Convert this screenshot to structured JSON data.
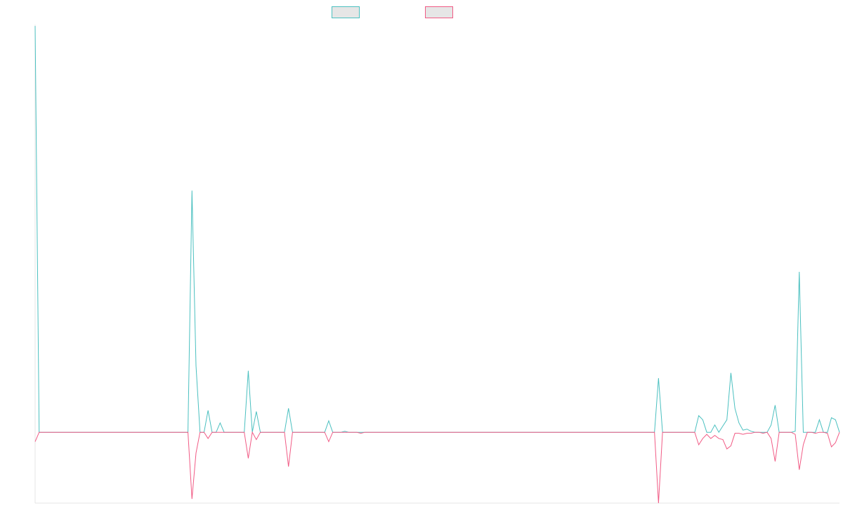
{
  "chart_data": {
    "type": "line",
    "title": "",
    "xlabel": "",
    "ylabel": "",
    "ylim": [
      -3.4,
      19.5
    ],
    "grid": false,
    "legend": {
      "placement": "top-center"
    },
    "x": [
      0,
      1,
      2,
      3,
      4,
      5,
      6,
      7,
      8,
      9,
      10,
      11,
      12,
      13,
      14,
      15,
      16,
      17,
      18,
      19,
      20,
      21,
      22,
      23,
      24,
      25,
      26,
      27,
      28,
      29,
      30,
      31,
      32,
      33,
      34,
      35,
      36,
      37,
      38,
      39,
      40,
      41,
      42,
      43,
      44,
      45,
      46,
      47,
      48,
      49,
      50,
      51,
      52,
      53,
      54,
      55,
      56,
      57,
      58,
      59,
      60,
      61,
      62,
      63,
      64,
      65,
      66,
      67,
      68,
      69,
      70,
      71,
      72,
      73,
      74,
      75,
      76,
      77,
      78,
      79,
      80,
      81,
      82,
      83,
      84,
      85,
      86,
      87,
      88,
      89,
      90,
      91,
      92,
      93,
      94,
      95,
      96,
      97,
      98,
      99,
      100,
      101,
      102,
      103,
      104,
      105,
      106,
      107,
      108,
      109,
      110,
      111,
      112,
      113,
      114,
      115,
      116,
      117,
      118,
      119,
      120,
      121,
      122,
      123,
      124,
      125,
      126,
      127,
      128,
      129,
      130,
      131,
      132,
      133,
      134,
      135,
      136,
      137,
      138,
      139,
      140,
      141,
      142,
      143,
      144,
      145,
      146,
      147,
      148,
      149,
      150,
      151,
      152,
      153,
      154,
      155,
      156,
      157,
      158,
      159,
      160,
      161,
      162,
      163,
      164,
      165,
      166,
      167,
      168,
      169,
      170,
      171,
      172,
      173,
      174,
      175,
      176,
      177,
      178,
      179,
      180,
      181,
      182,
      183,
      184,
      185,
      186,
      187,
      188,
      189,
      190,
      191,
      192,
      193,
      194,
      195,
      196,
      197,
      198,
      199,
      200
    ],
    "series": [
      {
        "name": "",
        "color": "#4bc0c0",
        "values": [
          19.5,
          0,
          0,
          0,
          0,
          0,
          0,
          0,
          0,
          0,
          0,
          0,
          0,
          0,
          0,
          0,
          0,
          0,
          0,
          0,
          0,
          0,
          0,
          0,
          0,
          0,
          0,
          0,
          0,
          0,
          0,
          0,
          0,
          0,
          0,
          0,
          0,
          0,
          0,
          11.6,
          3.2,
          0,
          0,
          1.05,
          0,
          0,
          0.45,
          0,
          0,
          0,
          0,
          0,
          0,
          2.95,
          0,
          1.0,
          0,
          0,
          0,
          0,
          0,
          0,
          0,
          1.15,
          0,
          0,
          0,
          0,
          0,
          0,
          0,
          0,
          0,
          0.55,
          0,
          0,
          0,
          0.05,
          0,
          0,
          0,
          0,
          0,
          0,
          0,
          0,
          0,
          0,
          0,
          0,
          0,
          0,
          0,
          0,
          0,
          0,
          0,
          0,
          0,
          0,
          0,
          0,
          0,
          0,
          0,
          0,
          0,
          0,
          0,
          0,
          0,
          0,
          0,
          0,
          0,
          0,
          0,
          0,
          0,
          0,
          0,
          0,
          0,
          0,
          0,
          0,
          0,
          0,
          0,
          0,
          0,
          0,
          0,
          0,
          0,
          0,
          0,
          0,
          0,
          0,
          0,
          0,
          0,
          0,
          0,
          0,
          0,
          0,
          0,
          0,
          0,
          0,
          0,
          0,
          0,
          2.6,
          0,
          0,
          0,
          0,
          0,
          0,
          0,
          0,
          0,
          0.8,
          0.6,
          0,
          0,
          0.35,
          0,
          0.3,
          0.6,
          2.85,
          1.15,
          0.45,
          0.1,
          0.15,
          0.05,
          0,
          0,
          0,
          0,
          0.35,
          1.3,
          0,
          0,
          0,
          0,
          0.05,
          7.7,
          0,
          0,
          0,
          0,
          0.6,
          0,
          0,
          0.7,
          0.6,
          0
        ]
      },
      {
        "name": "",
        "color": "#f15b85",
        "values": [
          -0.45,
          0,
          0,
          0,
          0,
          0,
          0,
          0,
          0,
          0,
          0,
          0,
          0,
          0,
          0,
          0,
          0,
          0,
          0,
          0,
          0,
          0,
          0,
          0,
          0,
          0,
          0,
          0,
          0,
          0,
          0,
          0,
          0,
          0,
          0,
          0,
          0,
          0,
          0,
          -3.2,
          -1.0,
          0,
          0,
          -0.3,
          0,
          0,
          0,
          0,
          0,
          0,
          0,
          0,
          0,
          -1.25,
          0,
          -0.35,
          0,
          0,
          0,
          0,
          0,
          0,
          0,
          -1.65,
          0,
          0,
          0,
          0,
          0,
          0,
          0,
          0,
          0,
          -0.45,
          0,
          0,
          0,
          0,
          0,
          0,
          0,
          -0.05,
          0,
          0,
          0,
          0,
          0,
          0,
          0,
          0,
          0,
          0,
          0,
          0,
          0,
          0,
          0,
          0,
          0,
          0,
          0,
          0,
          0,
          0,
          0,
          0,
          0,
          0,
          0,
          0,
          0,
          0,
          0,
          0,
          0,
          0,
          0,
          0,
          0,
          0,
          0,
          0,
          0,
          0,
          0,
          0,
          0,
          0,
          0,
          0,
          0,
          0,
          0,
          0,
          0,
          0,
          0,
          0,
          0,
          0,
          0,
          0,
          0,
          0,
          0,
          0,
          0,
          0,
          0,
          0,
          0,
          0,
          0,
          0,
          0,
          -3.4,
          0,
          0,
          0,
          0,
          0,
          0,
          0,
          0,
          0,
          -0.6,
          -0.3,
          -0.1,
          -0.3,
          -0.15,
          -0.3,
          -0.35,
          -0.8,
          -0.65,
          -0.05,
          -0.05,
          -0.1,
          -0.05,
          -0.05,
          0,
          0,
          -0.05,
          0,
          -0.3,
          -1.4,
          0,
          0,
          0,
          0,
          -0.1,
          -1.8,
          -0.6,
          0,
          0,
          -0.05,
          0,
          0,
          -0.05,
          -0.7,
          -0.5,
          0
        ]
      }
    ]
  }
}
